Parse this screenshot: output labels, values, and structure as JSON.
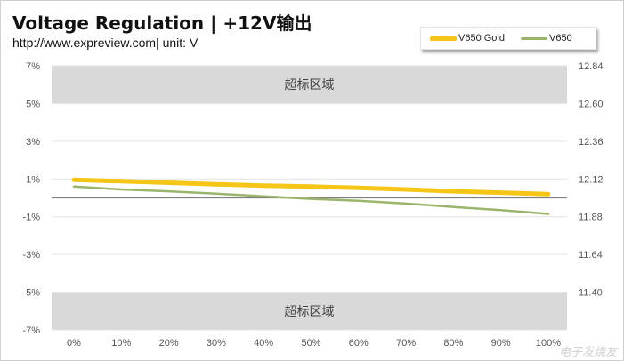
{
  "header": {
    "title": "Voltage Regulation | +12V输出",
    "subtitle": "http://www.expreview.com| unit: V"
  },
  "watermark": "电子发烧友",
  "colors": {
    "v650_gold": "#f5c518",
    "v650": "#9ab56b",
    "band": "#d9d9d9",
    "grid": "#e3e3e3",
    "zero_line": "#808080"
  },
  "chart_data": {
    "type": "line",
    "title": "Voltage Regulation | +12V输出",
    "categories": [
      "0%",
      "10%",
      "20%",
      "30%",
      "40%",
      "50%",
      "60%",
      "70%",
      "80%",
      "90%",
      "100%"
    ],
    "x_tick_labels": [
      "0%",
      "10%",
      "20%",
      "30%",
      "40%",
      "50%",
      "60%",
      "70%",
      "80%",
      "90%",
      "100%"
    ],
    "y_left": {
      "range": [
        -7,
        7
      ],
      "ticks": [
        7,
        5,
        3,
        1,
        -1,
        -3,
        -5,
        -7
      ],
      "tick_labels": [
        "7%",
        "5%",
        "3%",
        "1%",
        "-1%",
        "-3%",
        "-5%",
        "-7%"
      ]
    },
    "y_right": {
      "range": [
        11.16,
        12.84
      ],
      "ticks": [
        12.84,
        12.6,
        12.36,
        12.12,
        11.88,
        11.64,
        11.4
      ],
      "tick_labels": [
        "12.84",
        "12.60",
        "12.36",
        "12.12",
        "11.88",
        "11.64",
        "11.40"
      ]
    },
    "bands": [
      {
        "from": 5,
        "to": 7,
        "label": "超标区域"
      },
      {
        "from": -7,
        "to": -5,
        "label": "超标区域"
      }
    ],
    "reference_line": 0,
    "series": [
      {
        "name": "V650 Gold",
        "color": "#f5c518",
        "values": [
          0.95,
          0.88,
          0.8,
          0.72,
          0.65,
          0.6,
          0.53,
          0.45,
          0.35,
          0.28,
          0.2
        ]
      },
      {
        "name": "V650",
        "color": "#9ab56b",
        "values": [
          0.6,
          0.45,
          0.35,
          0.22,
          0.08,
          -0.05,
          -0.15,
          -0.3,
          -0.48,
          -0.65,
          -0.85
        ]
      }
    ],
    "legend_position": "top-right",
    "grid": true
  }
}
